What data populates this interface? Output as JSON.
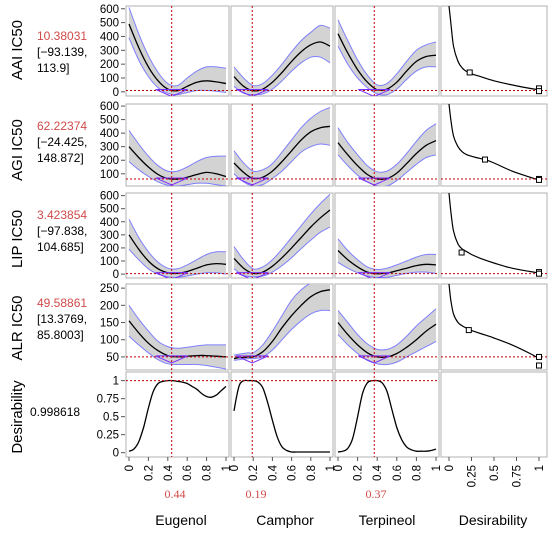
{
  "chart_data": {
    "type": "line",
    "factors": [
      {
        "name": "Eugenol",
        "current": 0.44,
        "current_label": "0.44"
      },
      {
        "name": "Camphor",
        "current": 0.19,
        "current_label": "0.19"
      },
      {
        "name": "Terpineol",
        "current": 0.37,
        "current_label": "0.37"
      },
      {
        "name": "Desirability",
        "current": null,
        "current_label": ""
      }
    ],
    "x_ticks": [
      "0",
      "0.2",
      "0.4",
      "0.6",
      "0.8",
      "1"
    ],
    "desirability_x_ticks": [
      "0",
      "0.25",
      "0.5",
      "0.75",
      "1"
    ],
    "responses": [
      {
        "name": "AAI IC50",
        "predicted": "10.38031",
        "ci_line1": "[−93.139,",
        "ci_line2": "113.9]",
        "ylim": [
          -30,
          620
        ],
        "y_ticks": [
          0,
          100,
          200,
          300,
          400,
          500,
          600
        ],
        "ref_y": 10,
        "curves": [
          {
            "x": [
              0,
              0.1,
              0.2,
              0.3,
              0.4,
              0.5,
              0.6,
              0.7,
              0.8,
              0.9,
              1.0
            ],
            "y": [
              490,
              320,
              180,
              80,
              20,
              8,
              40,
              70,
              80,
              72,
              60
            ],
            "lo": [
              390,
              230,
              110,
              30,
              -10,
              -20,
              -5,
              10,
              10,
              5,
              -5
            ],
            "hi": [
              610,
              420,
              260,
              140,
              60,
              45,
              100,
              150,
              180,
              180,
              170
            ]
          },
          {
            "x": [
              0,
              0.1,
              0.2,
              0.3,
              0.4,
              0.5,
              0.6,
              0.7,
              0.8,
              0.9,
              1.0
            ],
            "y": [
              110,
              40,
              8,
              20,
              70,
              140,
              220,
              290,
              340,
              360,
              330
            ],
            "lo": [
              40,
              -10,
              -20,
              -15,
              20,
              80,
              150,
              210,
              250,
              250,
              210
            ],
            "hi": [
              180,
              100,
              45,
              60,
              120,
              200,
              290,
              370,
              430,
              480,
              460
            ]
          },
          {
            "x": [
              0,
              0.1,
              0.2,
              0.3,
              0.4,
              0.5,
              0.6,
              0.7,
              0.8,
              0.9,
              1.0
            ],
            "y": [
              420,
              280,
              160,
              70,
              15,
              20,
              70,
              150,
              220,
              255,
              265
            ],
            "lo": [
              330,
              200,
              100,
              30,
              -15,
              -20,
              20,
              90,
              150,
              180,
              180
            ],
            "hi": [
              520,
              370,
              230,
              120,
              50,
              60,
              130,
              220,
              300,
              340,
              360
            ]
          }
        ],
        "desirability": {
          "x": [
            0.0,
            0.02,
            0.05,
            0.1,
            0.15,
            0.2,
            0.25,
            0.35,
            0.5,
            0.7,
            0.9,
            1.0
          ],
          "y": [
            620,
            500,
            330,
            220,
            170,
            145,
            130,
            110,
            80,
            50,
            25,
            15
          ],
          "marker_d": 0.23,
          "marker_y": 140,
          "end_markers": [
            25,
            5
          ]
        }
      },
      {
        "name": "AGI IC50",
        "predicted": "62.22374",
        "ci_line1": "[−24.425,",
        "ci_line2": "148.872]",
        "ylim": [
          10,
          615
        ],
        "y_ticks": [
          100,
          200,
          300,
          400,
          500,
          600
        ],
        "ref_y": 62,
        "curves": [
          {
            "x": [
              0,
              0.1,
              0.2,
              0.3,
              0.4,
              0.5,
              0.6,
              0.7,
              0.8,
              0.9,
              1.0
            ],
            "y": [
              300,
              220,
              150,
              95,
              65,
              60,
              75,
              95,
              110,
              100,
              80
            ],
            "lo": [
              190,
              130,
              80,
              40,
              15,
              10,
              20,
              30,
              30,
              20,
              10
            ],
            "hi": [
              420,
              320,
              230,
              160,
              120,
              120,
              150,
              190,
              220,
              230,
              230
            ]
          },
          {
            "x": [
              0,
              0.1,
              0.2,
              0.3,
              0.4,
              0.5,
              0.6,
              0.7,
              0.8,
              0.9,
              1.0
            ],
            "y": [
              180,
              110,
              65,
              75,
              120,
              190,
              270,
              350,
              410,
              440,
              450
            ],
            "lo": [
              100,
              40,
              10,
              20,
              65,
              120,
              190,
              260,
              300,
              320,
              310
            ],
            "hi": [
              270,
              180,
              120,
              130,
              175,
              260,
              350,
              440,
              510,
              560,
              590
            ]
          },
          {
            "x": [
              0,
              0.1,
              0.2,
              0.3,
              0.4,
              0.5,
              0.6,
              0.7,
              0.8,
              0.9,
              1.0
            ],
            "y": [
              330,
              240,
              160,
              95,
              62,
              65,
              105,
              175,
              250,
              310,
              345
            ],
            "lo": [
              240,
              160,
              90,
              40,
              10,
              10,
              50,
              110,
              170,
              220,
              240
            ],
            "hi": [
              440,
              330,
              240,
              160,
              115,
              120,
              170,
              250,
              340,
              420,
              470
            ]
          }
        ],
        "desirability": {
          "x": [
            0.0,
            0.02,
            0.05,
            0.1,
            0.15,
            0.2,
            0.3,
            0.4,
            0.5,
            0.7,
            0.9,
            1.0
          ],
          "y": [
            615,
            500,
            380,
            300,
            260,
            240,
            220,
            205,
            180,
            120,
            75,
            55
          ],
          "marker_d": 0.4,
          "marker_y": 205,
          "end_markers": [
            62,
            55
          ]
        }
      },
      {
        "name": "LIP IC50",
        "predicted": "3.423854",
        "ci_line1": "[−97.838,",
        "ci_line2": "104.685]",
        "ylim": [
          -30,
          620
        ],
        "y_ticks": [
          0,
          100,
          200,
          300,
          400,
          500,
          600
        ],
        "ref_y": 3,
        "curves": [
          {
            "x": [
              0,
              0.1,
              0.2,
              0.3,
              0.4,
              0.5,
              0.6,
              0.7,
              0.8,
              0.9,
              1.0
            ],
            "y": [
              300,
              190,
              100,
              40,
              10,
              5,
              20,
              45,
              70,
              80,
              75
            ],
            "lo": [
              190,
              110,
              40,
              0,
              -20,
              -25,
              -15,
              0,
              10,
              10,
              0
            ],
            "hi": [
              420,
              280,
              170,
              90,
              45,
              40,
              70,
              110,
              150,
              170,
              170
            ]
          },
          {
            "x": [
              0,
              0.1,
              0.2,
              0.3,
              0.4,
              0.5,
              0.6,
              0.7,
              0.8,
              0.9,
              1.0
            ],
            "y": [
              120,
              45,
              5,
              15,
              60,
              125,
              200,
              280,
              360,
              430,
              490
            ],
            "lo": [
              40,
              -10,
              -20,
              -15,
              15,
              65,
              125,
              195,
              260,
              320,
              360
            ],
            "hi": [
              210,
              110,
              40,
              55,
              110,
              190,
              280,
              370,
              460,
              540,
              610
            ]
          },
          {
            "x": [
              0,
              0.1,
              0.2,
              0.3,
              0.4,
              0.5,
              0.6,
              0.7,
              0.8,
              0.9,
              1.0
            ],
            "y": [
              180,
              110,
              55,
              15,
              3,
              8,
              25,
              45,
              65,
              75,
              70
            ],
            "lo": [
              90,
              45,
              10,
              -15,
              -25,
              -25,
              -10,
              5,
              15,
              15,
              5
            ],
            "hi": [
              270,
              180,
              110,
              55,
              35,
              45,
              70,
              100,
              130,
              150,
              150
            ]
          }
        ],
        "desirability": {
          "x": [
            0.0,
            0.02,
            0.05,
            0.1,
            0.15,
            0.2,
            0.25,
            0.35,
            0.5,
            0.7,
            0.9,
            1.0
          ],
          "y": [
            620,
            480,
            330,
            230,
            190,
            170,
            150,
            120,
            85,
            45,
            20,
            8
          ],
          "marker_d": 0.14,
          "marker_y": 165,
          "end_markers": [
            15,
            3
          ]
        }
      },
      {
        "name": "ALR IC50",
        "predicted": "49.58861",
        "ci_line1": "[13.3769,",
        "ci_line2": "85.8003]",
        "ylim": [
          12,
          262
        ],
        "y_ticks": [
          50,
          100,
          150,
          200,
          250
        ],
        "ref_y": 50,
        "curves": [
          {
            "x": [
              0,
              0.1,
              0.2,
              0.3,
              0.4,
              0.5,
              0.6,
              0.7,
              0.8,
              0.9,
              1.0
            ],
            "y": [
              155,
              120,
              90,
              68,
              54,
              50,
              52,
              54,
              54,
              52,
              50
            ],
            "lo": [
              110,
              85,
              62,
              42,
              30,
              28,
              28,
              28,
              25,
              20,
              15
            ],
            "hi": [
              200,
              160,
              125,
              95,
              80,
              75,
              78,
              82,
              85,
              85,
              85
            ]
          },
          {
            "x": [
              0,
              0.05,
              0.1,
              0.15,
              0.2,
              0.3,
              0.4,
              0.5,
              0.6,
              0.7,
              0.8,
              0.9,
              1.0
            ],
            "y": [
              45,
              48,
              48,
              50,
              50,
              65,
              95,
              135,
              170,
              200,
              225,
              240,
              245
            ],
            "lo": [
              40,
              42,
              44,
              45,
              45,
              50,
              70,
              100,
              130,
              155,
              175,
              185,
              185
            ],
            "hi": [
              55,
              58,
              60,
              62,
              62,
              85,
              125,
              170,
              215,
              245,
              265,
              275,
              280
            ]
          },
          {
            "x": [
              0,
              0.1,
              0.2,
              0.3,
              0.4,
              0.5,
              0.6,
              0.7,
              0.8,
              0.9,
              1.0
            ],
            "y": [
              150,
              115,
              85,
              62,
              50,
              50,
              60,
              78,
              100,
              125,
              145
            ],
            "lo": [
              115,
              85,
              60,
              40,
              30,
              28,
              35,
              50,
              65,
              80,
              95
            ],
            "hi": [
              185,
              150,
              115,
              88,
              72,
              72,
              85,
              110,
              140,
              165,
              190
            ]
          }
        ],
        "desirability": {
          "x": [
            0.0,
            0.02,
            0.05,
            0.1,
            0.15,
            0.2,
            0.25,
            0.35,
            0.5,
            0.7,
            0.9,
            1.0
          ],
          "y": [
            262,
            215,
            175,
            150,
            140,
            133,
            127,
            118,
            105,
            85,
            60,
            45
          ],
          "marker_d": 0.22,
          "marker_y": 128,
          "end_markers": [
            50,
            25
          ]
        }
      },
      {
        "name": "Desirability",
        "predicted": "0.998618",
        "ci_line1": "",
        "ci_line2": "",
        "ylim": [
          -0.06,
          1.12
        ],
        "y_ticks": [
          0,
          0.25,
          0.5,
          0.75,
          1
        ],
        "y_tick_labels": [
          "0",
          "0.25",
          "0.5",
          "0.75",
          "1"
        ],
        "ref_y": 1,
        "curves": [
          {
            "x": [
              0,
              0.05,
              0.1,
              0.15,
              0.2,
              0.25,
              0.3,
              0.35,
              0.4,
              0.45,
              0.5,
              0.55,
              0.6,
              0.65,
              0.7,
              0.75,
              0.8,
              0.85,
              0.9,
              0.95,
              1.0
            ],
            "y": [
              0.02,
              0.05,
              0.15,
              0.35,
              0.62,
              0.85,
              0.96,
              0.99,
              1.0,
              1.0,
              0.99,
              0.98,
              0.96,
              0.92,
              0.88,
              0.82,
              0.78,
              0.77,
              0.8,
              0.86,
              0.92
            ]
          },
          {
            "x": [
              0,
              0.03,
              0.06,
              0.1,
              0.15,
              0.2,
              0.25,
              0.3,
              0.35,
              0.4,
              0.45,
              0.5,
              0.55,
              0.6,
              0.65,
              0.7,
              0.75,
              0.8,
              0.9,
              1.0
            ],
            "y": [
              0.58,
              0.8,
              0.95,
              1.0,
              1.0,
              1.0,
              0.98,
              0.9,
              0.7,
              0.45,
              0.22,
              0.08,
              0.03,
              0.01,
              0.01,
              0.01,
              0.01,
              0.01,
              0.01,
              0.01
            ]
          },
          {
            "x": [
              0,
              0.05,
              0.1,
              0.15,
              0.2,
              0.25,
              0.3,
              0.35,
              0.4,
              0.45,
              0.5,
              0.55,
              0.6,
              0.65,
              0.7,
              0.75,
              0.8,
              0.85,
              0.9,
              0.95,
              1.0
            ],
            "y": [
              0.01,
              0.02,
              0.06,
              0.2,
              0.5,
              0.82,
              0.97,
              1.0,
              1.0,
              0.97,
              0.85,
              0.6,
              0.35,
              0.18,
              0.08,
              0.04,
              0.02,
              0.02,
              0.02,
              0.03,
              0.05
            ]
          }
        ],
        "desirability": null
      }
    ],
    "colors": {
      "curve": "#000000",
      "band": "#d3d3d3",
      "band_edge": "#7f7fff",
      "reference": "#c00000",
      "marker": "#7a2fff",
      "predicted_text": "#d04a4a"
    }
  }
}
